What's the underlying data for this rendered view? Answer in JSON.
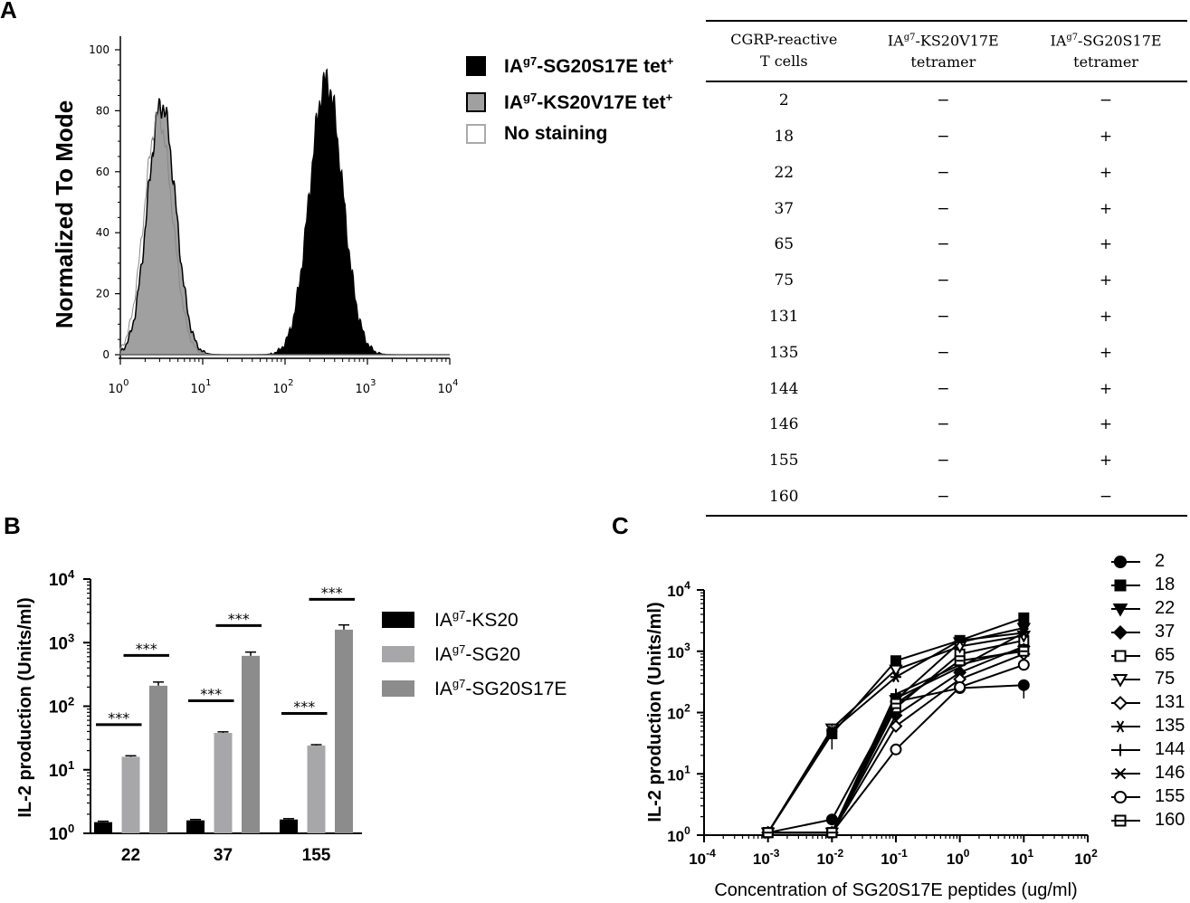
{
  "panels": {
    "a": "A",
    "b": "B",
    "c": "C"
  },
  "histogram": {
    "ylabel": "Normalized To Mode",
    "yticks": [
      "100",
      "80",
      "60",
      "40",
      "20",
      "0"
    ],
    "xtick_base": "10",
    "xtick_exps": [
      "0",
      "1",
      "2",
      "3",
      "4"
    ],
    "legend": [
      {
        "prefix": "IA",
        "sup": "g7",
        "rest": "-SG20S17E tet",
        "tail_sup": "+",
        "swatch": "black"
      },
      {
        "prefix": "IA",
        "sup": "g7",
        "rest": "-KS20V17E tet",
        "tail_sup": "+",
        "swatch": "grey"
      },
      {
        "prefix": "",
        "sup": "",
        "rest": "No staining",
        "tail_sup": "",
        "swatch": "white"
      }
    ],
    "colors": {
      "sg20s17e": "#000000",
      "ks20v17e": "#a0a0a0",
      "no_staining": "#ffffff"
    }
  },
  "table": {
    "headers": [
      [
        "CGRP-reactive",
        "T cells"
      ],
      [
        "IA",
        "g7",
        "-KS20V17E",
        "tetramer"
      ],
      [
        "IA",
        "g7",
        "-SG20S17E",
        "tetramer"
      ]
    ],
    "rows": [
      [
        "2",
        "−",
        "−"
      ],
      [
        "18",
        "−",
        "+"
      ],
      [
        "22",
        "−",
        "+"
      ],
      [
        "37",
        "−",
        "+"
      ],
      [
        "65",
        "−",
        "+"
      ],
      [
        "75",
        "−",
        "+"
      ],
      [
        "131",
        "−",
        "+"
      ],
      [
        "135",
        "−",
        "+"
      ],
      [
        "144",
        "−",
        "+"
      ],
      [
        "146",
        "−",
        "+"
      ],
      [
        "155",
        "−",
        "+"
      ],
      [
        "160",
        "−",
        "−"
      ]
    ]
  },
  "chart_data": [
    {
      "type": "bar",
      "title": "",
      "xlabel": "",
      "ylabel": "IL-2 production (Units/ml)",
      "yscale": "log",
      "ylim": [
        1,
        10000
      ],
      "ytick_base": "10",
      "ytick_exps": [
        "0",
        "1",
        "2",
        "3",
        "4"
      ],
      "categories": [
        "22",
        "37",
        "155"
      ],
      "series": [
        {
          "name": "IA g7-KS20",
          "name_prefix": "IA",
          "name_sup": "g7",
          "name_rest": "-KS20",
          "color": "#000000",
          "values": [
            1.5,
            1.6,
            1.65
          ],
          "errors": [
            0.05,
            0.05,
            0.05
          ]
        },
        {
          "name": "IA g7-SG20",
          "name_prefix": "IA",
          "name_sup": "g7",
          "name_rest": "-SG20",
          "color": "#a7a7a9",
          "values": [
            16,
            38,
            24
          ],
          "errors": [
            0.6,
            1.5,
            0.8
          ]
        },
        {
          "name": "IA g7-SG20S17E",
          "name_prefix": "IA",
          "name_sup": "g7",
          "name_rest": "-SG20S17E",
          "color": "#8c8c8c",
          "values": [
            210,
            620,
            1600
          ],
          "errors": [
            30,
            90,
            300
          ]
        }
      ],
      "significance": "***"
    },
    {
      "type": "line",
      "xscale": "log",
      "yscale": "log",
      "xlabel": "Concentration of SG20S17E peptides (ug/ml)",
      "ylabel": "IL-2 production (Units/ml)",
      "xlim": [
        0.0001,
        100
      ],
      "ylim": [
        1,
        10000
      ],
      "tick_base": "10",
      "xtick_exps": [
        "-4",
        "-3",
        "-2",
        "-1",
        "0",
        "1",
        "2"
      ],
      "ytick_exps": [
        "0",
        "1",
        "2",
        "3",
        "4"
      ],
      "x": [
        0.001,
        0.01,
        0.1,
        1,
        10
      ],
      "series": [
        {
          "name": "2",
          "marker": "circle",
          "values": [
            1.1,
            1.8,
            150,
            250,
            280
          ]
        },
        {
          "name": "18",
          "marker": "square",
          "values": [
            1.1,
            45,
            700,
            1500,
            3500
          ]
        },
        {
          "name": "22",
          "marker": "triangle-down",
          "values": [
            1.1,
            1.1,
            160,
            1400,
            2400
          ]
        },
        {
          "name": "37",
          "marker": "diamond",
          "values": [
            1.1,
            1.1,
            90,
            450,
            1200
          ]
        },
        {
          "name": "65",
          "marker": "square-open",
          "values": [
            1.1,
            1.1,
            120,
            900,
            1500
          ]
        },
        {
          "name": "75",
          "marker": "triangle-down-open",
          "values": [
            1.1,
            55,
            500,
            1200,
            1800
          ]
        },
        {
          "name": "131",
          "marker": "diamond-open",
          "values": [
            1.1,
            1.1,
            60,
            350,
            900
          ]
        },
        {
          "name": "135",
          "marker": "star",
          "values": [
            1.1,
            50,
            380,
            1500,
            2000
          ]
        },
        {
          "name": "144",
          "marker": "plus",
          "values": [
            1.1,
            1.1,
            200,
            600,
            1100
          ]
        },
        {
          "name": "146",
          "marker": "x",
          "values": [
            1.1,
            1.1,
            170,
            550,
            2000
          ]
        },
        {
          "name": "155",
          "marker": "circle-open",
          "values": [
            1.1,
            1.1,
            25,
            260,
            600
          ]
        },
        {
          "name": "160",
          "marker": "square-open-dot",
          "values": [
            1.1,
            1.1,
            140,
            700,
            1000
          ]
        }
      ]
    }
  ]
}
